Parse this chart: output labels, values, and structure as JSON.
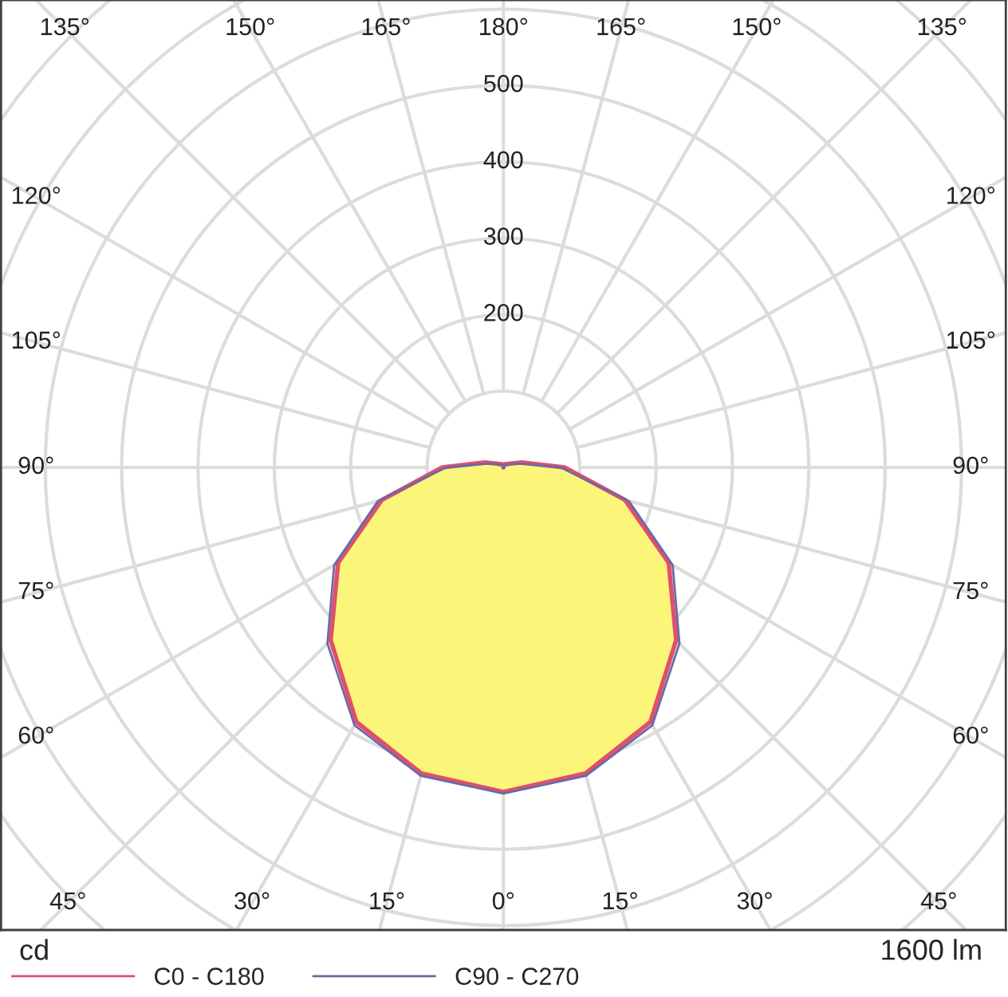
{
  "chart_data": {
    "type": "radar",
    "categories": [
      "180°",
      "165°",
      "150°",
      "135°",
      "120°",
      "105°",
      "90°",
      "75°",
      "60°",
      "45°",
      "30°",
      "15°",
      "0°",
      "15°",
      "30°",
      "45°",
      "60°",
      "75°",
      "90°",
      "105°",
      "120°",
      "135°",
      "150°",
      "165°"
    ],
    "series": [
      {
        "name": "C0 - C180",
        "color": "#e0506a",
        "values": [
          0,
          4,
          5,
          6,
          10,
          25,
          80,
          165,
          250,
          320,
          385,
          415,
          425,
          415,
          385,
          320,
          250,
          165,
          80,
          25,
          10,
          6,
          5,
          4
        ]
      },
      {
        "name": "C90 - C270",
        "color": "#6a6aa8",
        "values": [
          0,
          3,
          4,
          5,
          8,
          20,
          75,
          170,
          256,
          326,
          390,
          418,
          427,
          418,
          390,
          326,
          256,
          170,
          75,
          20,
          8,
          5,
          4,
          3
        ]
      }
    ],
    "colors": [
      "#fbf57a"
    ],
    "ylim": [
      0,
      800
    ],
    "yticks": [
      200,
      300,
      400,
      500
    ],
    "ylabel": "cd",
    "annotations": [
      "1600 lm"
    ],
    "grid": true,
    "legend": "bottom left",
    "marker": "none",
    "line_style": "solid"
  }
}
